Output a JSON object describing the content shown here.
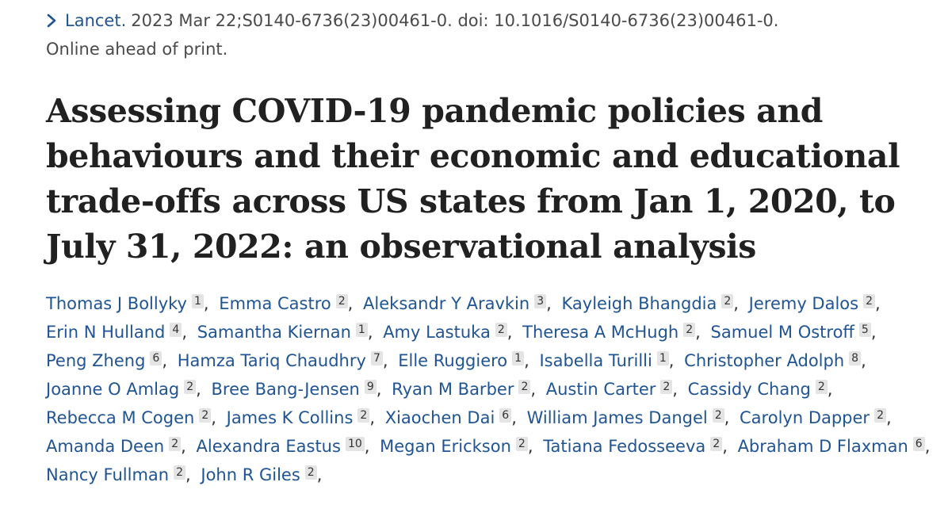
{
  "citation": {
    "journal": "Lancet.",
    "details": "2023 Mar 22;S0140-6736(23)00461-0. doi: 10.1016/S0140-6736(23)00461-0.",
    "status": "Online ahead of print."
  },
  "title": "Assessing COVID-19 pandemic policies and behaviours and their economic and educational trade-offs across US states from Jan 1, 2020, to July 31, 2022: an observational analysis",
  "authors": [
    {
      "name": "Thomas J Bollyky",
      "aff": "1"
    },
    {
      "name": "Emma Castro",
      "aff": "2"
    },
    {
      "name": "Aleksandr Y Aravkin",
      "aff": "3"
    },
    {
      "name": "Kayleigh Bhangdia",
      "aff": "2"
    },
    {
      "name": "Jeremy Dalos",
      "aff": "2"
    },
    {
      "name": "Erin N Hulland",
      "aff": "4"
    },
    {
      "name": "Samantha Kiernan",
      "aff": "1"
    },
    {
      "name": "Amy Lastuka",
      "aff": "2"
    },
    {
      "name": "Theresa A McHugh",
      "aff": "2"
    },
    {
      "name": "Samuel M Ostroff",
      "aff": "5"
    },
    {
      "name": "Peng Zheng",
      "aff": "6"
    },
    {
      "name": "Hamza Tariq Chaudhry",
      "aff": "7"
    },
    {
      "name": "Elle Ruggiero",
      "aff": "1"
    },
    {
      "name": "Isabella Turilli",
      "aff": "1"
    },
    {
      "name": "Christopher Adolph",
      "aff": "8"
    },
    {
      "name": "Joanne O Amlag",
      "aff": "2"
    },
    {
      "name": "Bree Bang-Jensen",
      "aff": "9"
    },
    {
      "name": "Ryan M Barber",
      "aff": "2"
    },
    {
      "name": "Austin Carter",
      "aff": "2"
    },
    {
      "name": "Cassidy Chang",
      "aff": "2"
    },
    {
      "name": "Rebecca M Cogen",
      "aff": "2"
    },
    {
      "name": "James K Collins",
      "aff": "2"
    },
    {
      "name": "Xiaochen Dai",
      "aff": "6"
    },
    {
      "name": "William James Dangel",
      "aff": "2"
    },
    {
      "name": "Carolyn Dapper",
      "aff": "2"
    },
    {
      "name": "Amanda Deen",
      "aff": "2"
    },
    {
      "name": "Alexandra Eastus",
      "aff": "10"
    },
    {
      "name": "Megan Erickson",
      "aff": "2"
    },
    {
      "name": "Tatiana Fedosseeva",
      "aff": "2"
    },
    {
      "name": "Abraham D Flaxman",
      "aff": "6"
    },
    {
      "name": "Nancy Fullman",
      "aff": "2"
    },
    {
      "name": "John R Giles",
      "aff": "2"
    }
  ],
  "colors": {
    "link": "#205493",
    "text": "#212121",
    "badge_bg": "#e4e4e4"
  }
}
